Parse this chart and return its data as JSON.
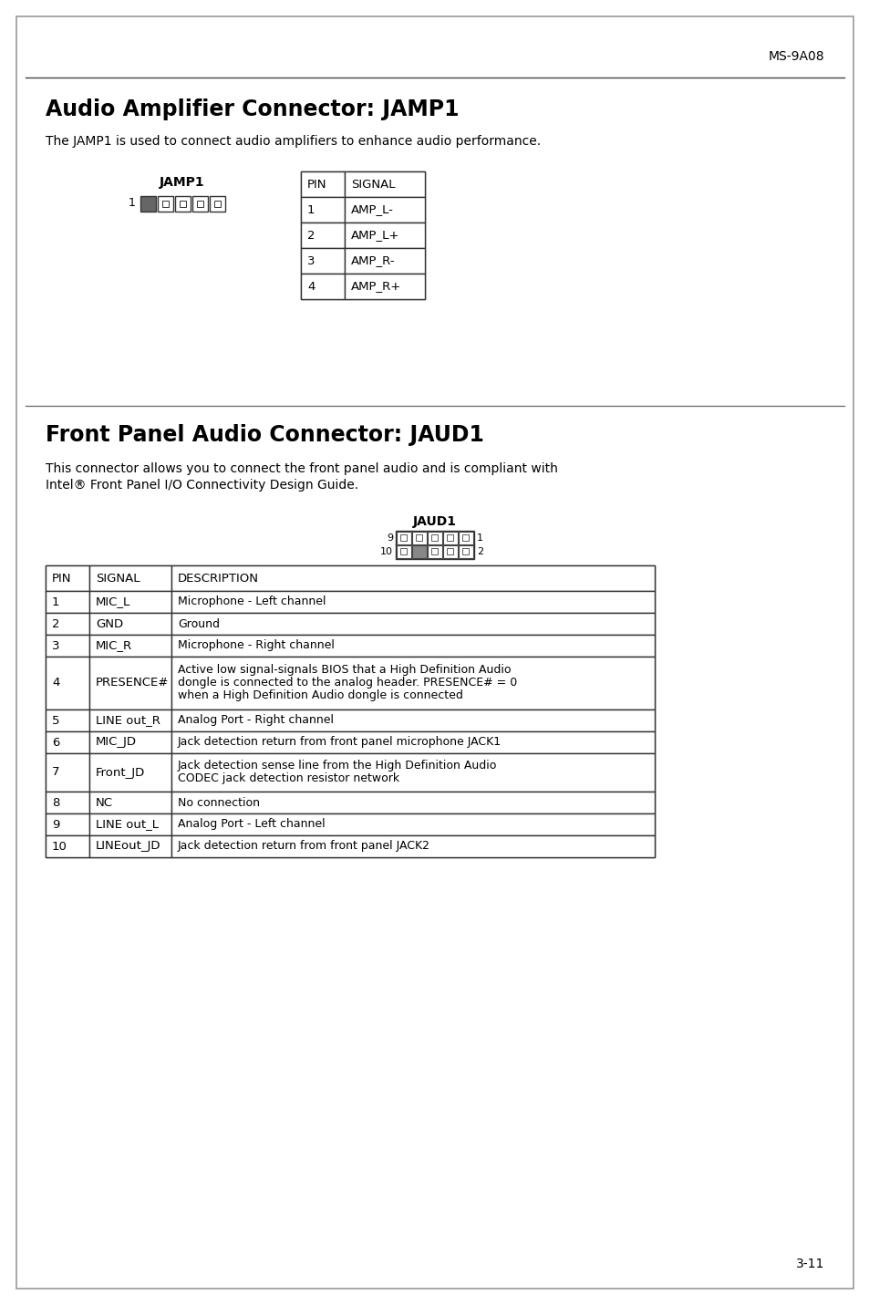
{
  "page_label": "MS-9A08",
  "page_number": "3-11",
  "section1_title": "Audio Amplifier Connector: JAMP1",
  "section1_body": "The JAMP1 is used to connect audio amplifiers to enhance audio performance.",
  "jamp1_label": "JAMP1",
  "jamp1_table_headers": [
    "PIN",
    "SIGNAL"
  ],
  "jamp1_table_rows": [
    [
      "1",
      "AMP_L-"
    ],
    [
      "2",
      "AMP_L+"
    ],
    [
      "3",
      "AMP_R-"
    ],
    [
      "4",
      "AMP_R+"
    ]
  ],
  "section2_title": "Front Panel Audio Connector: JAUD1",
  "section2_body": "This connector allows you to connect the front panel audio and is compliant with\nIntel® Front Panel I/O Connectivity Design Guide.",
  "jaud1_label": "JAUD1",
  "jaud1_table_headers": [
    "PIN",
    "SIGNAL",
    "DESCRIPTION"
  ],
  "jaud1_table_rows": [
    [
      "1",
      "MIC_L",
      "Microphone - Left channel"
    ],
    [
      "2",
      "GND",
      "Ground"
    ],
    [
      "3",
      "MIC_R",
      "Microphone - Right channel"
    ],
    [
      "4",
      "PRESENCE#",
      "Active low signal-signals BIOS that a High Definition Audio\ndongle is connected to the analog header. PRESENCE# = 0\nwhen a High Definition Audio dongle is connected"
    ],
    [
      "5",
      "LINE out_R",
      "Analog Port - Right channel"
    ],
    [
      "6",
      "MIC_JD",
      "Jack detection return from front panel microphone JACK1"
    ],
    [
      "7",
      "Front_JD",
      "Jack detection sense line from the High Definition Audio\nCODEC jack detection resistor network"
    ],
    [
      "8",
      "NC",
      "No connection"
    ],
    [
      "9",
      "LINE out_L",
      "Analog Port - Left channel"
    ],
    [
      "10",
      "LINEout_JD",
      "Jack detection return from front panel JACK2"
    ]
  ],
  "bg_color": "#ffffff",
  "text_color": "#000000"
}
